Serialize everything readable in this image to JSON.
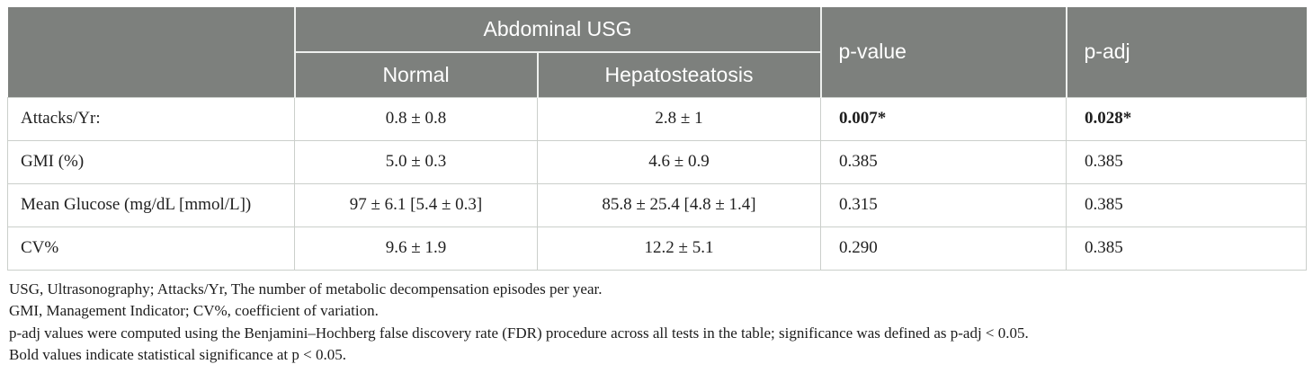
{
  "table": {
    "columns": {
      "group_header": "Abdominal USG",
      "subheaders": [
        "Normal",
        "Hepatosteatosis"
      ],
      "p_value_header": "p-value",
      "p_adj_header": "p-adj"
    },
    "rows": [
      {
        "label": "Attacks/Yr:",
        "normal": "0.8 ± 0.8",
        "hepatosteatosis": "2.8 ± 1",
        "p_value": "0.007*",
        "p_adj": "0.028*",
        "significant": true
      },
      {
        "label": "GMI (%)",
        "normal": "5.0 ± 0.3",
        "hepatosteatosis": "4.6 ± 0.9",
        "p_value": "0.385",
        "p_adj": "0.385",
        "significant": false
      },
      {
        "label": "Mean Glucose (mg/dL [mmol/L])",
        "normal": "97 ± 6.1 [5.4 ± 0.3]",
        "hepatosteatosis": "85.8 ± 25.4 [4.8 ± 1.4]",
        "p_value": "0.315",
        "p_adj": "0.385",
        "significant": false
      },
      {
        "label": "CV%",
        "normal": "9.6 ± 1.9",
        "hepatosteatosis": "12.2 ± 5.1",
        "p_value": "0.290",
        "p_adj": "0.385",
        "significant": false
      }
    ]
  },
  "footnotes": [
    "USG, Ultrasonography; Attacks/Yr, The number of metabolic decompensation episodes per year.",
    "GMI, Management Indicator; CV%, coefficient of variation.",
    "p-adj values were computed using the Benjamini–Hochberg false discovery rate (FDR) procedure across all tests in the table; significance was defined as p-adj < 0.05.",
    "Bold values indicate statistical significance at p < 0.05."
  ],
  "colors": {
    "header_bg": "#7d807d",
    "header_text": "#ffffff",
    "body_border": "#cbcfcb",
    "body_text": "#1f1f1f",
    "header_separator": "#eef0ee"
  }
}
